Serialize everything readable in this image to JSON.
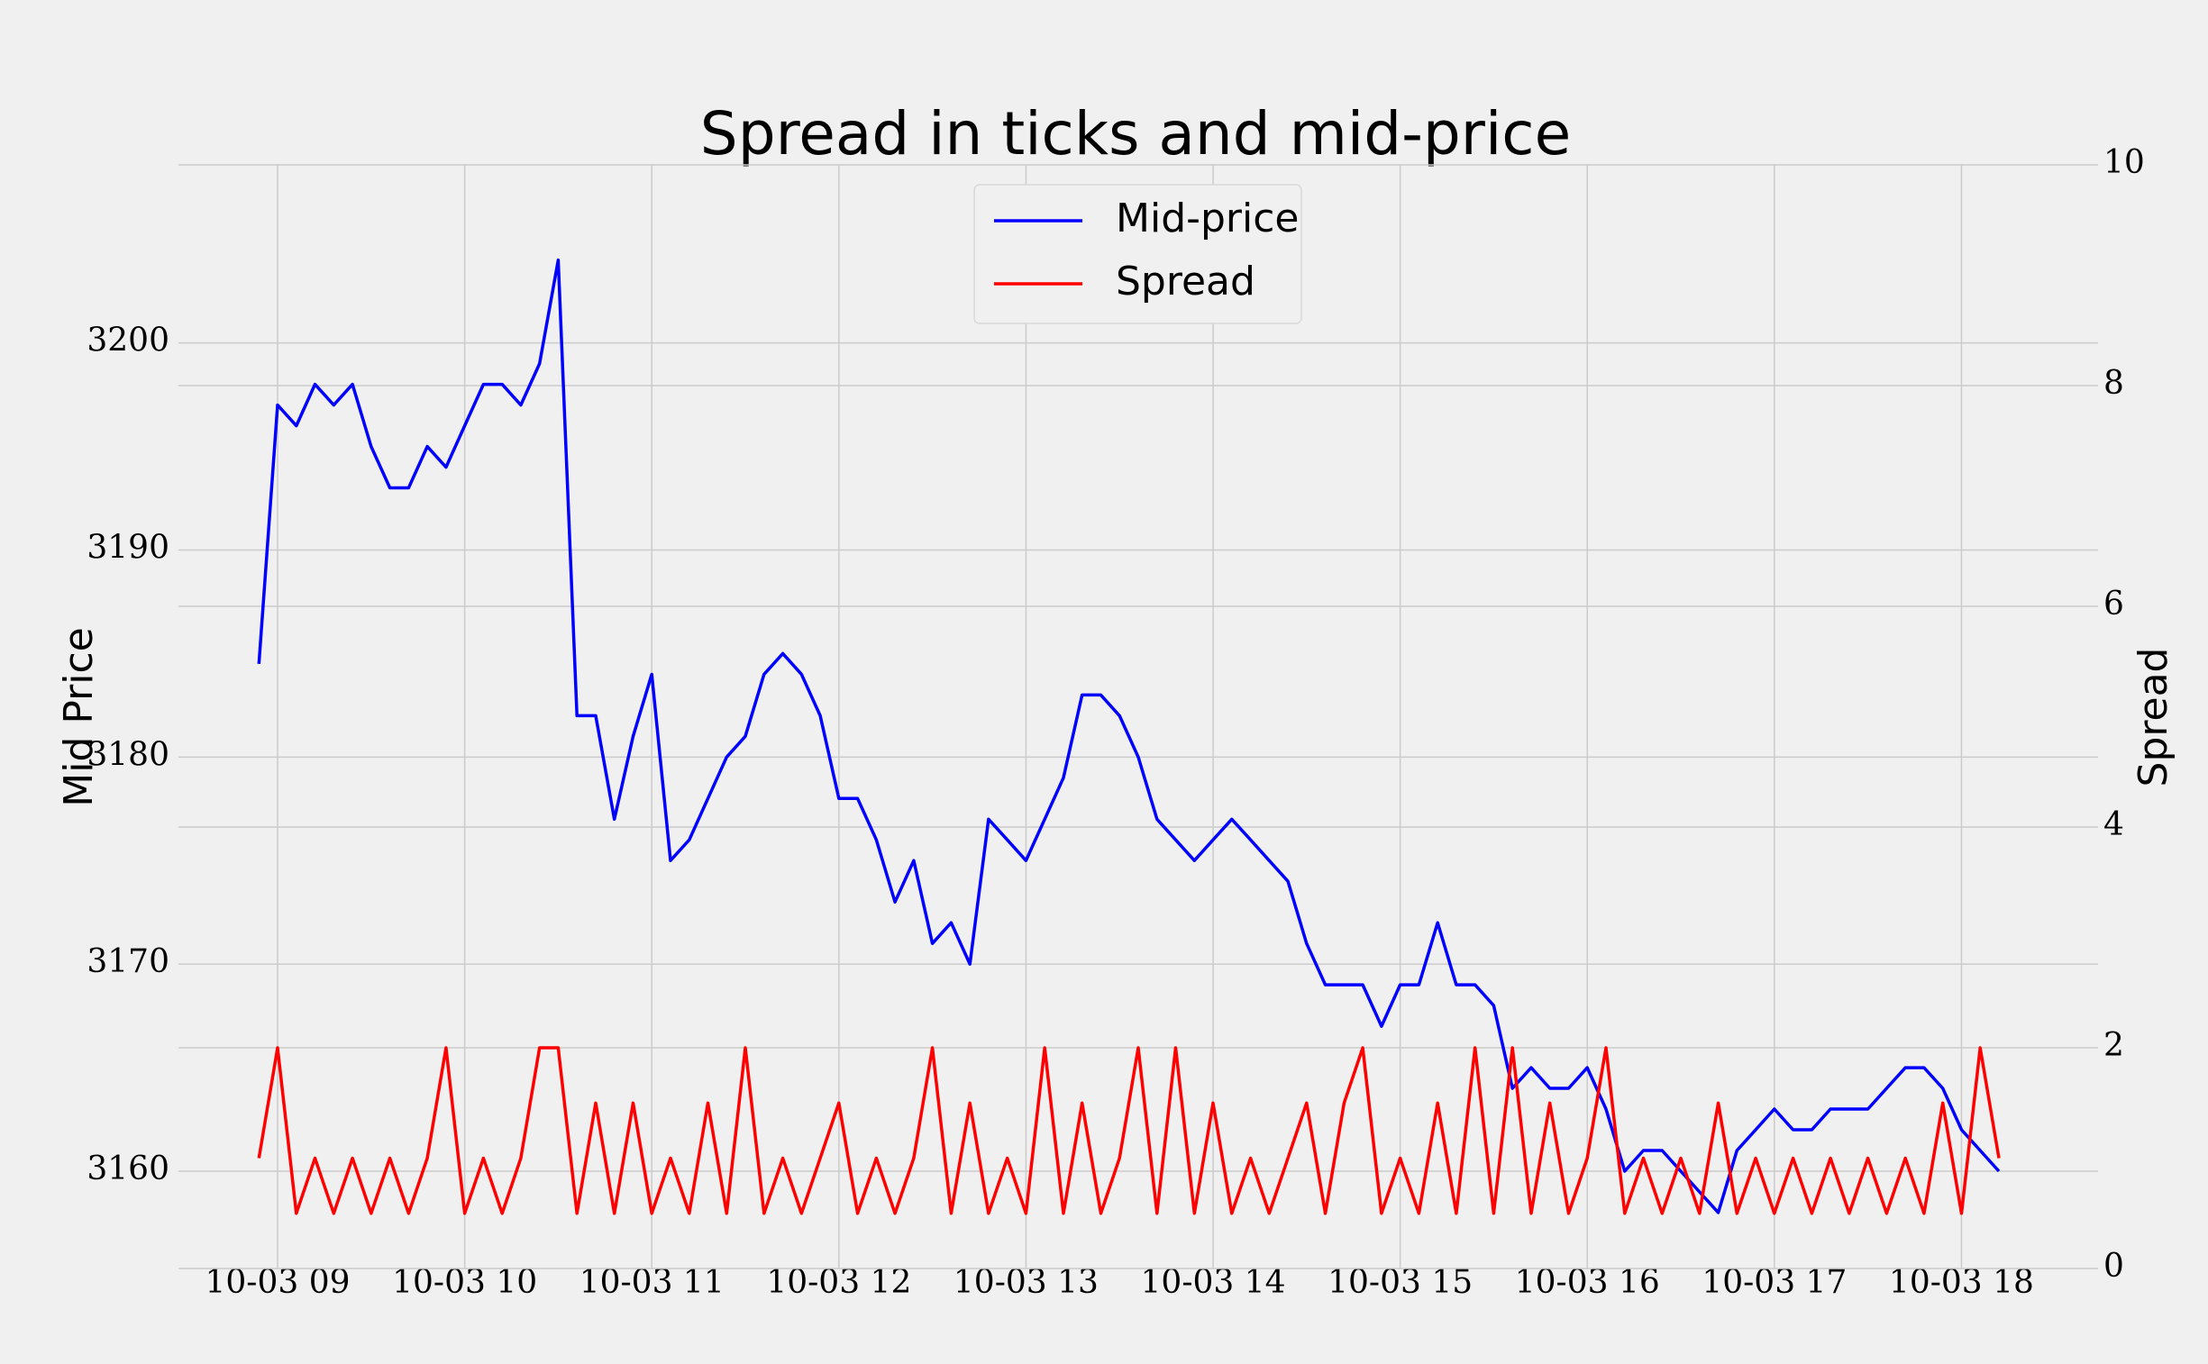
{
  "chart_data": {
    "type": "line",
    "title": "Spread in ticks and mid-price",
    "ylabel": "Mid Price",
    "y2label": "Spread",
    "x": [
      8.9,
      9.0,
      9.1,
      9.2,
      9.3,
      9.4,
      9.5,
      9.6,
      9.7,
      9.8,
      9.9,
      10.0,
      10.1,
      10.2,
      10.3,
      10.4,
      10.5,
      10.6,
      10.7,
      10.8,
      10.9,
      11.0,
      11.1,
      11.2,
      11.3,
      11.4,
      11.5,
      11.6,
      11.7,
      11.8,
      11.9,
      12.0,
      12.1,
      12.2,
      12.3,
      12.4,
      12.5,
      12.6,
      12.7,
      12.8,
      12.9,
      13.0,
      13.1,
      13.2,
      13.3,
      13.4,
      13.5,
      13.6,
      13.7,
      13.8,
      13.9,
      14.0,
      14.1,
      14.2,
      14.3,
      14.4,
      14.5,
      14.6,
      14.7,
      14.8,
      14.9,
      15.0,
      15.1,
      15.2,
      15.3,
      15.4,
      15.5,
      15.6,
      15.7,
      15.8,
      15.9,
      16.0,
      16.1,
      16.2,
      16.3,
      16.4,
      16.5,
      16.6,
      16.7,
      16.8,
      16.9,
      17.0,
      17.1,
      17.2,
      17.3,
      17.4,
      17.5,
      17.6,
      17.7,
      17.8,
      17.9,
      18.0,
      18.1,
      18.2
    ],
    "series": [
      {
        "name": "Mid-price",
        "color": "#0000ff",
        "values": [
          3184.5,
          3197,
          3196,
          3198,
          3197,
          3198,
          3195,
          3193,
          3193,
          3195,
          3194,
          3196,
          3198,
          3198,
          3197,
          3199,
          3204,
          3182,
          3182,
          3177,
          3181,
          3184,
          3175,
          3176,
          3178,
          3180,
          3181,
          3184,
          3185,
          3184,
          3182,
          3178,
          3178,
          3176,
          3173,
          3175,
          3171,
          3172,
          3170,
          3177,
          3176,
          3175,
          3177,
          3179,
          3183,
          3183,
          3182,
          3180,
          3177,
          3176,
          3175,
          3176,
          3177,
          3176,
          3175,
          3174,
          3171,
          3169,
          3169,
          3169,
          3167,
          3169,
          3169,
          3172,
          3169,
          3169,
          3168,
          3164,
          3165,
          3164,
          3164,
          3165,
          3163,
          3160,
          3161,
          3161,
          3160,
          3159,
          3158,
          3161,
          3162,
          3163,
          3162,
          3162,
          3163,
          3163,
          3163,
          3164,
          3165,
          3165,
          3164,
          3162,
          3161,
          3160
        ]
      },
      {
        "name": "Spread",
        "color": "#ff0000",
        "axis": "y2",
        "values": [
          1,
          2,
          0.5,
          1,
          0.5,
          1,
          0.5,
          1,
          0.5,
          1,
          2,
          0.5,
          1,
          0.5,
          1,
          2,
          2,
          0.5,
          1.5,
          0.5,
          1.5,
          0.5,
          1,
          0.5,
          1.5,
          0.5,
          2,
          0.5,
          1,
          0.5,
          1,
          1.5,
          0.5,
          1,
          0.5,
          1,
          2,
          0.5,
          1.5,
          0.5,
          1,
          0.5,
          2,
          0.5,
          1.5,
          0.5,
          1,
          2,
          0.5,
          2,
          0.5,
          1.5,
          0.5,
          1,
          0.5,
          1,
          1.5,
          0.5,
          1.5,
          2,
          0.5,
          1,
          0.5,
          1.5,
          0.5,
          2,
          0.5,
          2,
          0.5,
          1.5,
          0.5,
          1,
          2,
          0.5,
          1,
          0.5,
          1,
          0.5,
          1.5,
          0.5,
          1,
          0.5,
          1,
          0.5,
          1,
          0.5,
          1,
          0.5,
          1,
          0.5,
          1.5,
          0.5,
          2,
          1
        ]
      }
    ],
    "xlim": [
      8.47,
      18.73
    ],
    "xticks": [
      {
        "value": 9,
        "label": "10-03 09"
      },
      {
        "value": 10,
        "label": "10-03 10"
      },
      {
        "value": 11,
        "label": "10-03 11"
      },
      {
        "value": 12,
        "label": "10-03 12"
      },
      {
        "value": 13,
        "label": "10-03 13"
      },
      {
        "value": 14,
        "label": "10-03 14"
      },
      {
        "value": 15,
        "label": "10-03 15"
      },
      {
        "value": 16,
        "label": "10-03 16"
      },
      {
        "value": 17,
        "label": "10-03 17"
      },
      {
        "value": 18,
        "label": "10-03 18"
      }
    ],
    "ylim": [
      3155.3,
      3208.6
    ],
    "yticks": [
      3160,
      3170,
      3180,
      3190,
      3200
    ],
    "y2lim": [
      0,
      10
    ],
    "y2ticks": [
      0,
      2,
      4,
      6,
      8,
      10
    ],
    "grid": true,
    "legend": "upper center"
  }
}
